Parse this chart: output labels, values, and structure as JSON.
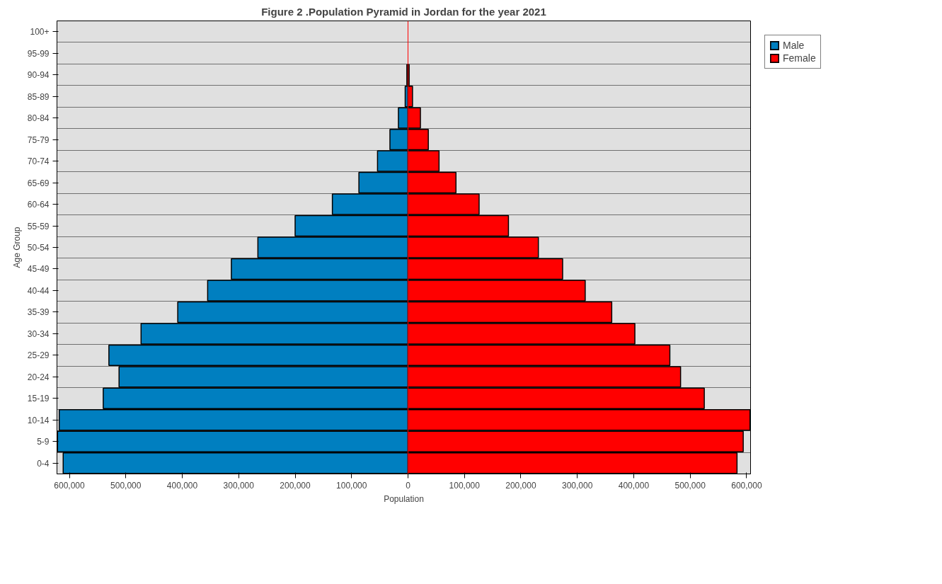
{
  "chart_data": {
    "type": "bar",
    "orientation": "horizontal",
    "stacked": true,
    "title": "Figure 2 .Population Pyramid in Jordan for the year 2021",
    "xlabel": "Population",
    "ylabel": "Age Group",
    "categories": [
      "100+",
      "95-99",
      "90-94",
      "85-89",
      "80-84",
      "75-79",
      "70-74",
      "65-69",
      "60-64",
      "55-59",
      "50-54",
      "45-49",
      "40-44",
      "35-39",
      "30-34",
      "25-29",
      "20-24",
      "15-19",
      "10-14",
      "5-9",
      "0-4"
    ],
    "series": [
      {
        "name": "Male",
        "color": "#007fc0",
        "values": [
          null,
          null,
          -2000,
          -5000,
          -17000,
          -32000,
          -54000,
          -87000,
          -134000,
          -200000,
          -266000,
          -313000,
          -355000,
          -408000,
          -473000,
          -530000,
          -512000,
          -540000,
          -618000,
          -621000,
          -611000
        ]
      },
      {
        "name": "Female",
        "color": "#ff0000",
        "values": [
          null,
          null,
          2000,
          8000,
          22000,
          36000,
          55000,
          85000,
          126000,
          178000,
          231000,
          274000,
          314000,
          361000,
          402000,
          464000,
          483000,
          525000,
          606000,
          594000,
          583000
        ]
      }
    ],
    "xlim": [
      -622000,
      607000
    ],
    "xticks": [
      {
        "value": -600000,
        "label": "600,000"
      },
      {
        "value": -500000,
        "label": "500,000"
      },
      {
        "value": -400000,
        "label": "400,000"
      },
      {
        "value": -300000,
        "label": "300,000"
      },
      {
        "value": -200000,
        "label": "200,000"
      },
      {
        "value": -100000,
        "label": "100,000"
      },
      0,
      {
        "value": 100000,
        "label": "100,000"
      },
      {
        "value": 200000,
        "label": "200,000"
      },
      {
        "value": 300000,
        "label": "300,000"
      },
      {
        "value": 400000,
        "label": "400,000"
      },
      {
        "value": 500000,
        "label": "500,000"
      },
      {
        "value": 600000,
        "label": "600,000"
      }
    ],
    "ref_lines": [
      {
        "axis": "x",
        "value": 0,
        "color": "#ff0000"
      }
    ],
    "grid": "y",
    "legend": "top right"
  }
}
